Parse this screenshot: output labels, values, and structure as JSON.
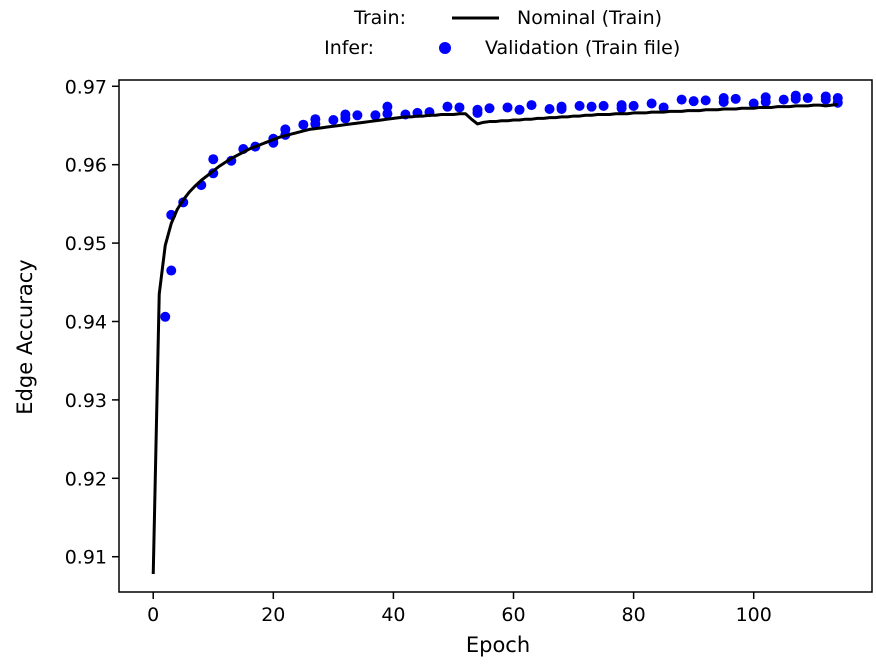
{
  "legend": {
    "groups": [
      {
        "group_label": "Train:",
        "entry_label": "Nominal (Train)",
        "marker": "line",
        "color": "#000000"
      },
      {
        "group_label": "Infer:",
        "entry_label": "Validation (Train file)",
        "marker": "dot",
        "color": "#0000ff"
      }
    ]
  },
  "chart_data": {
    "type": "line",
    "title": "",
    "xlabel": "Epoch",
    "ylabel": "Edge Accuracy",
    "xlim": [
      -5.7,
      119.7
    ],
    "ylim": [
      0.9055,
      0.9708
    ],
    "xticks": [
      0,
      20,
      40,
      60,
      80,
      100
    ],
    "xtick_labels": [
      "0",
      "20",
      "40",
      "60",
      "80",
      "100"
    ],
    "yticks": [
      0.91,
      0.92,
      0.93,
      0.94,
      0.95,
      0.96,
      0.97
    ],
    "ytick_labels": [
      "0.91",
      "0.92",
      "0.93",
      "0.94",
      "0.95",
      "0.96",
      "0.97"
    ],
    "grid": false,
    "legend_position": "top-center, outside the plot",
    "series": [
      {
        "name": "Nominal (Train)",
        "style": "line",
        "color": "#000000",
        "x": [
          0,
          1,
          2,
          3,
          4,
          5,
          6,
          7,
          8,
          9,
          10,
          11,
          12,
          13,
          14,
          15,
          16,
          17,
          18,
          19,
          20,
          21,
          22,
          23,
          24,
          25,
          26,
          27,
          28,
          29,
          30,
          31,
          32,
          33,
          34,
          35,
          36,
          37,
          38,
          39,
          40,
          41,
          42,
          43,
          44,
          45,
          46,
          47,
          48,
          49,
          50,
          51,
          52,
          53,
          54,
          55,
          56,
          57,
          58,
          59,
          60,
          61,
          62,
          63,
          64,
          65,
          66,
          67,
          68,
          69,
          70,
          71,
          72,
          73,
          74,
          75,
          76,
          77,
          78,
          79,
          80,
          81,
          82,
          83,
          84,
          85,
          86,
          87,
          88,
          89,
          90,
          91,
          92,
          93,
          94,
          95,
          96,
          97,
          98,
          99,
          100,
          101,
          102,
          103,
          104,
          105,
          106,
          107,
          108,
          109,
          110,
          111,
          112,
          113,
          114
        ],
        "y": [
          0.9078,
          0.9435,
          0.9497,
          0.9525,
          0.9543,
          0.9555,
          0.9565,
          0.9573,
          0.958,
          0.9586,
          0.9592,
          0.9598,
          0.9603,
          0.9608,
          0.9612,
          0.9616,
          0.962,
          0.9623,
          0.9626,
          0.9629,
          0.9632,
          0.9635,
          0.9637,
          0.9639,
          0.9641,
          0.9643,
          0.9645,
          0.9646,
          0.9647,
          0.9648,
          0.9649,
          0.965,
          0.9651,
          0.9652,
          0.9653,
          0.9654,
          0.9655,
          0.9656,
          0.9657,
          0.9658,
          0.9659,
          0.966,
          0.9661,
          0.9661,
          0.9662,
          0.9662,
          0.9663,
          0.9663,
          0.9664,
          0.9664,
          0.9664,
          0.9665,
          0.9665,
          0.9658,
          0.9652,
          0.9654,
          0.9655,
          0.9655,
          0.9656,
          0.9656,
          0.9657,
          0.9657,
          0.9658,
          0.9658,
          0.9659,
          0.9659,
          0.966,
          0.966,
          0.9661,
          0.9661,
          0.9662,
          0.9662,
          0.9663,
          0.9663,
          0.9664,
          0.9664,
          0.9664,
          0.9665,
          0.9665,
          0.9665,
          0.9666,
          0.9666,
          0.9666,
          0.9667,
          0.9667,
          0.9667,
          0.9668,
          0.9668,
          0.9668,
          0.9669,
          0.9669,
          0.9669,
          0.967,
          0.967,
          0.967,
          0.9671,
          0.9671,
          0.9671,
          0.9672,
          0.9672,
          0.9672,
          0.9673,
          0.9673,
          0.9673,
          0.9674,
          0.9674,
          0.9674,
          0.9675,
          0.9675,
          0.9675,
          0.9676,
          0.9676,
          0.9675,
          0.9676,
          0.9677
        ]
      },
      {
        "name": "Validation (Train file)",
        "style": "dots",
        "color": "#0000ff",
        "x": [
          2,
          3,
          3,
          5,
          8,
          10,
          10,
          13,
          15,
          17,
          20,
          20,
          22,
          22,
          25,
          27,
          27,
          30,
          32,
          32,
          34,
          37,
          39,
          39,
          42,
          44,
          46,
          49,
          51,
          54,
          54,
          56,
          59,
          61,
          63,
          66,
          68,
          68,
          71,
          73,
          75,
          78,
          78,
          80,
          83,
          85,
          88,
          90,
          92,
          95,
          95,
          97,
          100,
          102,
          102,
          105,
          107,
          107,
          109,
          112,
          112,
          114,
          114
        ],
        "y": [
          0.9406,
          0.9465,
          0.9536,
          0.9552,
          0.9574,
          0.9589,
          0.9607,
          0.9605,
          0.962,
          0.9623,
          0.9628,
          0.9633,
          0.9638,
          0.9645,
          0.9651,
          0.9652,
          0.9658,
          0.9657,
          0.9659,
          0.9664,
          0.9663,
          0.9663,
          0.9665,
          0.9674,
          0.9664,
          0.9666,
          0.9667,
          0.9674,
          0.9673,
          0.9666,
          0.967,
          0.9672,
          0.9673,
          0.967,
          0.9676,
          0.9671,
          0.9671,
          0.9674,
          0.9675,
          0.9674,
          0.9675,
          0.9672,
          0.9676,
          0.9675,
          0.9678,
          0.9673,
          0.9683,
          0.9681,
          0.9682,
          0.968,
          0.9685,
          0.9684,
          0.9678,
          0.968,
          0.9686,
          0.9683,
          0.9684,
          0.9688,
          0.9685,
          0.9683,
          0.9687,
          0.9679,
          0.9685
        ]
      }
    ]
  }
}
